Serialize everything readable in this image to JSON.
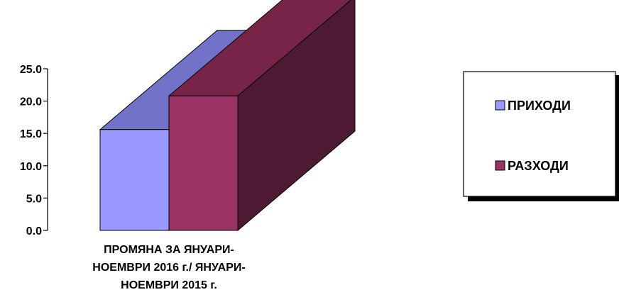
{
  "chart_data": {
    "type": "bar",
    "categories": [
      "ПРОМЯНА ЗА ЯНУАРИ-НОЕМВРИ 2016 г./ ЯНУАРИ-НОЕМВРИ  2015 г."
    ],
    "category_label_lines": [
      "ПРОМЯНА ЗА ЯНУАРИ-",
      "НОЕМВРИ 2016 г./ ЯНУАРИ-",
      "НОЕМВРИ  2015 г."
    ],
    "series": [
      {
        "name": "ПРИХОДИ",
        "values": [
          15.6
        ]
      },
      {
        "name": "РАЗХОДИ",
        "values": [
          20.8
        ]
      }
    ],
    "ylim": [
      0,
      25
    ],
    "yticks": [
      "0.0",
      "5.0",
      "10.0",
      "15.0",
      "20.0",
      "25.0"
    ],
    "grid": false,
    "legend_position": "right",
    "three_d": true,
    "colors": {
      "ПРИХОДИ": {
        "front": "#9999ff",
        "top": "#7272c8",
        "side": "#5a5aa8"
      },
      "РАЗХОДИ": {
        "front": "#993366",
        "top": "#782449",
        "side": "#4e1a33"
      }
    }
  }
}
